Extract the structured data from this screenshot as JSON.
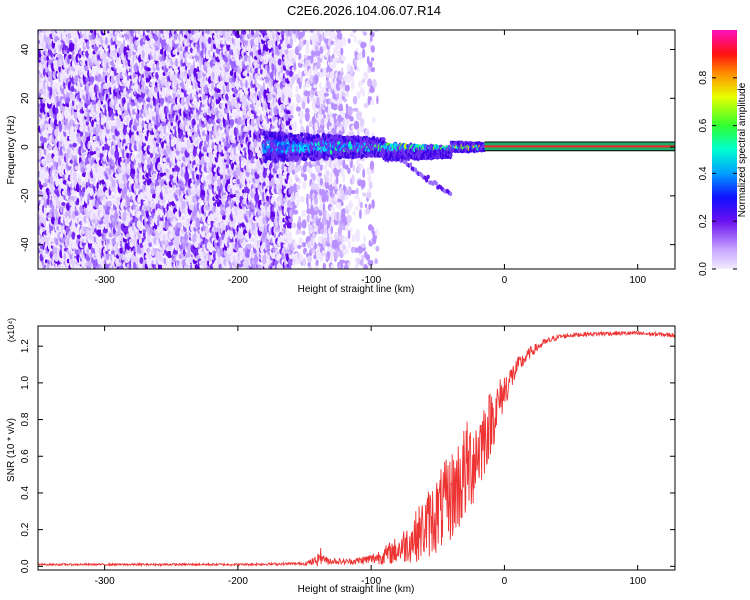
{
  "figure_title": "C2E6.2026.104.06.07.R14",
  "chart_data": [
    {
      "type": "heatmap",
      "name": "spectrogram",
      "xlabel": "Height of straight line (km)",
      "ylabel": "Frequency (Hz)",
      "xlim": [
        -350,
        128
      ],
      "ylim": [
        -50,
        48
      ],
      "xticks": [
        -300,
        -200,
        -100,
        0,
        100
      ],
      "xtick_labels": [
        "-300",
        "-200",
        "-100",
        "0",
        "100"
      ],
      "yticks": [
        -40,
        -20,
        0,
        20,
        40
      ],
      "ytick_labels": [
        "-40",
        "-20",
        "0",
        "20",
        "40"
      ],
      "colorbar": {
        "label": "Normalized spectral amplitude",
        "range": [
          0.0,
          1.0
        ],
        "ticks": [
          0.0,
          0.2,
          0.4,
          0.6,
          0.8
        ],
        "tick_labels": [
          "0.0",
          "0.2",
          "0.4",
          "0.6",
          "0.8"
        ],
        "colormap": [
          "#f0e6ff",
          "#b580ff",
          "#5a00e6",
          "#0000ff",
          "#00bfff",
          "#00ff80",
          "#40ff00",
          "#ffff00",
          "#ff8000",
          "#ff0000",
          "#ff00c0"
        ]
      },
      "signal_band": {
        "x_start": -15,
        "x_end": 128,
        "frequency_hz": 0.3,
        "half_width_hz": 1.8,
        "line_color": "#ff2020",
        "band_color": "#1fae6a"
      },
      "noise_region_x": [
        -350,
        -100
      ],
      "transition_region_x": [
        -180,
        -15
      ]
    },
    {
      "type": "line",
      "name": "snr",
      "xlabel": "Height of straight line (km)",
      "ylabel": "SNR (10 * v/v)",
      "yscale_label": "(x10⁴)",
      "xlim": [
        -350,
        128
      ],
      "ylim": [
        -0.02,
        1.31
      ],
      "xticks": [
        -300,
        -200,
        -100,
        0,
        100
      ],
      "xtick_labels": [
        "-300",
        "-200",
        "-100",
        "0",
        "100"
      ],
      "yticks": [
        0.0,
        0.2,
        0.4,
        0.6,
        0.8,
        1.0,
        1.2
      ],
      "ytick_labels": [
        "0.0",
        "0.2",
        "0.4",
        "0.6",
        "0.8",
        "1.0",
        "1.2"
      ],
      "line_color": "#ee3333",
      "series": [
        {
          "name": "SNR",
          "x": [
            -350,
            -300,
            -250,
            -200,
            -150,
            -140,
            -130,
            -120,
            -110,
            -100,
            -90,
            -80,
            -70,
            -60,
            -50,
            -40,
            -30,
            -20,
            -10,
            0,
            10,
            20,
            30,
            40,
            50,
            60,
            80,
            100,
            128
          ],
          "values": [
            0.01,
            0.01,
            0.01,
            0.01,
            0.015,
            0.03,
            0.03,
            0.025,
            0.03,
            0.04,
            0.06,
            0.09,
            0.14,
            0.21,
            0.29,
            0.38,
            0.5,
            0.63,
            0.79,
            0.96,
            1.09,
            1.17,
            1.22,
            1.25,
            1.26,
            1.265,
            1.27,
            1.27,
            1.26
          ],
          "noise_amplitude": [
            0.005,
            0.005,
            0.006,
            0.006,
            0.008,
            0.03,
            0.02,
            0.015,
            0.02,
            0.03,
            0.05,
            0.08,
            0.12,
            0.18,
            0.22,
            0.25,
            0.28,
            0.25,
            0.18,
            0.1,
            0.05,
            0.03,
            0.02,
            0.015,
            0.012,
            0.012,
            0.012,
            0.012,
            0.012
          ]
        }
      ]
    }
  ]
}
